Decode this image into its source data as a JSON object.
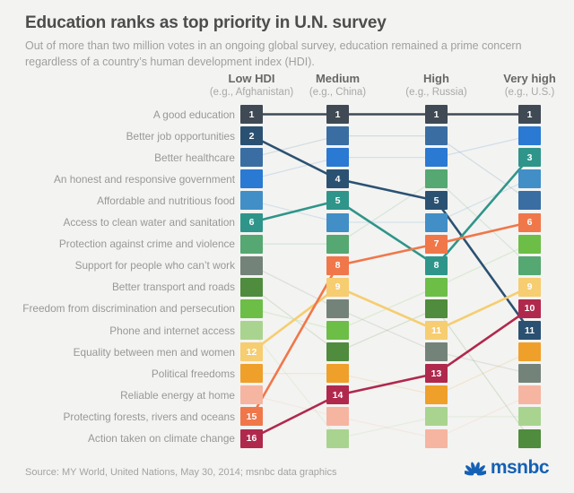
{
  "title": "Education ranks as top priority in U.N. survey",
  "subtitle": "Out of more than two million votes in an ongoing global survey, education remained a prime concern regardless of a country’s human development index (HDI).",
  "source": "Source: MY World, United Nations, May 30, 2014; msnbc data graphics",
  "brand": {
    "name": "msnbc",
    "color": "#1460b5",
    "icon": "peacock-icon"
  },
  "chart_data": {
    "type": "bump",
    "title": "Education ranks as top priority in U.N. survey",
    "columns": [
      {
        "label": "Low HDI",
        "caption": "(e.g., Afghanistan)"
      },
      {
        "label": "Medium",
        "caption": "(e.g., China)"
      },
      {
        "label": "High",
        "caption": "(e.g., Russia)"
      },
      {
        "label": "Very high",
        "caption": "(e.g., U.S.)"
      }
    ],
    "rank_range": [
      1,
      16
    ],
    "legend_position": "none",
    "grid": false,
    "issues": [
      {
        "label": "A good education",
        "color": "#3f4a54",
        "ranks": [
          1,
          1,
          1,
          1
        ],
        "highlighted": true
      },
      {
        "label": "Better job opportunities",
        "color": "#2b5172",
        "ranks": [
          2,
          4,
          5,
          11
        ],
        "highlighted": true
      },
      {
        "label": "Better healthcare",
        "color": "#3a6ea3",
        "ranks": [
          3,
          2,
          2,
          5
        ],
        "highlighted": false
      },
      {
        "label": "An honest and responsive government",
        "color": "#2a79d2",
        "ranks": [
          4,
          3,
          3,
          2
        ],
        "highlighted": false
      },
      {
        "label": "Affordable and nutritious food",
        "color": "#418fc6",
        "ranks": [
          5,
          6,
          6,
          4
        ],
        "highlighted": false
      },
      {
        "label": "Access to clean water and sanitation",
        "color": "#2f958a",
        "ranks": [
          6,
          5,
          8,
          3
        ],
        "highlighted": true
      },
      {
        "label": "Protection against crime and violence",
        "color": "#55a871",
        "ranks": [
          7,
          7,
          4,
          8
        ],
        "highlighted": false
      },
      {
        "label": "Support for people who can’t work",
        "color": "#74837a",
        "ranks": [
          8,
          10,
          12,
          13
        ],
        "highlighted": false
      },
      {
        "label": "Better transport and roads",
        "color": "#4f8c3d",
        "ranks": [
          9,
          12,
          10,
          16
        ],
        "highlighted": false
      },
      {
        "label": "Freedom from discrimination and persecution",
        "color": "#6cbe47",
        "ranks": [
          10,
          11,
          9,
          7
        ],
        "highlighted": false
      },
      {
        "label": "Phone and internet access",
        "color": "#a9d48f",
        "ranks": [
          11,
          16,
          15,
          15
        ],
        "highlighted": false
      },
      {
        "label": "Equality between men and women",
        "color": "#f6cd70",
        "ranks": [
          12,
          9,
          11,
          9
        ],
        "highlighted": true
      },
      {
        "label": "Political freedoms",
        "color": "#efa02a",
        "ranks": [
          13,
          13,
          14,
          12
        ],
        "highlighted": false
      },
      {
        "label": "Reliable energy at home",
        "color": "#f6b5a1",
        "ranks": [
          14,
          15,
          16,
          14
        ],
        "highlighted": false
      },
      {
        "label": "Protecting forests, rivers and oceans",
        "color": "#f0774a",
        "ranks": [
          15,
          8,
          7,
          6
        ],
        "highlighted": true
      },
      {
        "label": "Action taken on climate change",
        "color": "#b0294d",
        "ranks": [
          16,
          14,
          13,
          10
        ],
        "highlighted": true
      }
    ]
  }
}
